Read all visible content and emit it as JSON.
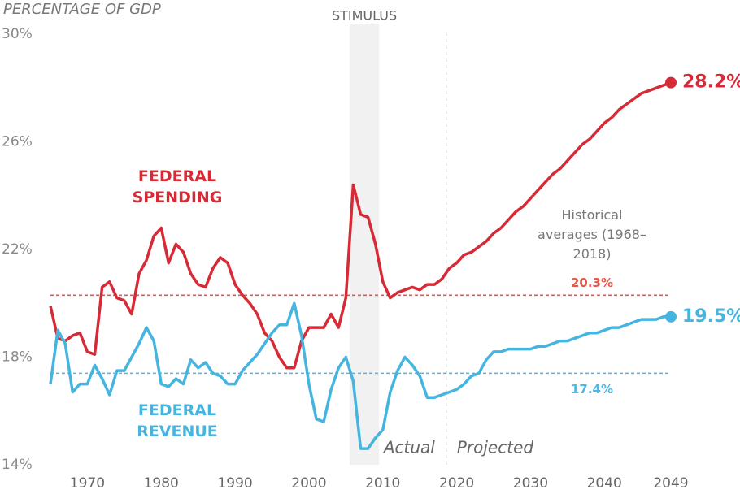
{
  "chart_data": {
    "type": "line",
    "y_axis_title": "PERCENTAGE OF GDP",
    "x": [
      1965,
      1966,
      1967,
      1968,
      1969,
      1970,
      1971,
      1972,
      1973,
      1974,
      1975,
      1976,
      1977,
      1978,
      1979,
      1980,
      1981,
      1982,
      1983,
      1984,
      1985,
      1986,
      1987,
      1988,
      1989,
      1990,
      1991,
      1992,
      1993,
      1994,
      1995,
      1996,
      1997,
      1998,
      1999,
      2000,
      2001,
      2002,
      2003,
      2004,
      2005,
      2006,
      2007,
      2008,
      2009,
      2010,
      2011,
      2012,
      2013,
      2014,
      2015,
      2016,
      2017,
      2018,
      2019,
      2020,
      2021,
      2022,
      2023,
      2024,
      2025,
      2026,
      2027,
      2028,
      2029,
      2030,
      2031,
      2032,
      2033,
      2034,
      2035,
      2036,
      2037,
      2038,
      2039,
      2040,
      2041,
      2042,
      2043,
      2044,
      2045,
      2046,
      2047,
      2048,
      2049
    ],
    "series": [
      {
        "name": "FEDERAL SPENDING",
        "color": "#d62a36",
        "values": [
          19.9,
          18.7,
          18.6,
          18.8,
          18.9,
          18.2,
          18.1,
          20.6,
          20.8,
          20.2,
          20.1,
          19.6,
          21.1,
          21.6,
          22.5,
          22.8,
          21.5,
          22.2,
          21.9,
          21.1,
          20.7,
          20.6,
          21.3,
          21.7,
          21.5,
          20.7,
          20.3,
          20.0,
          19.6,
          18.9,
          18.6,
          18.0,
          17.6,
          17.6,
          18.6,
          19.1,
          19.1,
          19.1,
          19.6,
          19.1,
          20.2,
          24.4,
          23.3,
          23.2,
          22.2,
          20.8,
          20.2,
          20.4,
          20.5,
          20.6,
          20.5,
          20.7,
          20.7,
          20.9,
          21.3,
          21.5,
          21.8,
          21.9,
          22.1,
          22.3,
          22.6,
          22.8,
          23.1,
          23.4,
          23.6,
          23.9,
          24.2,
          24.5,
          24.8,
          25.0,
          25.3,
          25.6,
          25.9,
          26.1,
          26.4,
          26.7,
          26.9,
          27.2,
          27.4,
          27.6,
          27.8,
          27.9,
          28.0,
          28.1,
          28.2
        ],
        "end_label": "28.2%"
      },
      {
        "name": "FEDERAL REVENUE",
        "color": "#45b5e0",
        "values": [
          17.0,
          19.0,
          18.5,
          16.7,
          17.0,
          17.0,
          17.7,
          17.2,
          16.6,
          17.5,
          17.5,
          18.0,
          18.5,
          19.1,
          18.6,
          17.0,
          16.9,
          17.2,
          17.0,
          17.9,
          17.6,
          17.8,
          17.4,
          17.3,
          17.0,
          17.0,
          17.5,
          17.8,
          18.1,
          18.5,
          18.9,
          19.2,
          19.2,
          20.0,
          18.8,
          17.0,
          15.7,
          15.6,
          16.8,
          17.6,
          18.0,
          17.1,
          14.6,
          14.6,
          15.0,
          15.3,
          16.7,
          17.5,
          18.0,
          17.7,
          17.3,
          16.5,
          16.5,
          16.6,
          16.7,
          16.8,
          17.0,
          17.3,
          17.4,
          17.9,
          18.2,
          18.2,
          18.3,
          18.3,
          18.3,
          18.3,
          18.4,
          18.4,
          18.5,
          18.6,
          18.6,
          18.7,
          18.8,
          18.9,
          18.9,
          19.0,
          19.1,
          19.1,
          19.2,
          19.3,
          19.4,
          19.4,
          19.4,
          19.5,
          19.5
        ],
        "end_label": "19.5%"
      }
    ],
    "reference_lines": [
      {
        "value": 20.3,
        "label": "20.3%",
        "color": "#e8564a"
      },
      {
        "value": 17.4,
        "label": "17.4%",
        "color": "#4db8e8"
      }
    ],
    "reference_title": "Historical averages (1968–2018)",
    "shaded_band": {
      "label": "STIMULUS",
      "start": 2005.5,
      "end": 2009.5
    },
    "divider": {
      "x": 2018.6,
      "left_label": "Actual",
      "right_label": "Projected"
    },
    "xlim": [
      1965,
      2049
    ],
    "xticks": [
      1970,
      1980,
      1990,
      2000,
      2010,
      2020,
      2030,
      2040,
      2049
    ],
    "ylim": [
      14,
      30
    ],
    "yticks": [
      {
        "value": 14,
        "label": "14%"
      },
      {
        "value": 18,
        "label": "18%"
      },
      {
        "value": 22,
        "label": "22%"
      },
      {
        "value": 26,
        "label": "26%"
      },
      {
        "value": 30,
        "label": "30%"
      }
    ]
  }
}
